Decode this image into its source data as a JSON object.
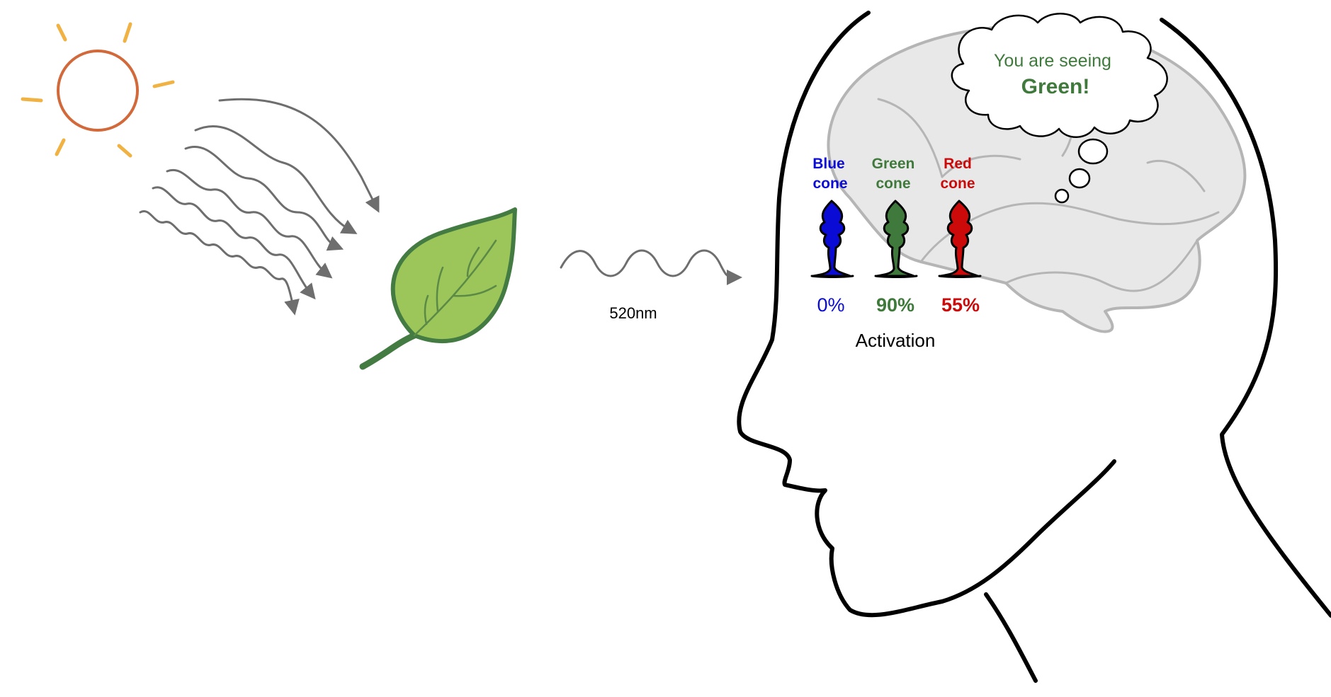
{
  "wavelength_label": "520nm",
  "thought": {
    "line1": "You are seeing",
    "line2": "Green!"
  },
  "cones": [
    {
      "name_line1": "Blue",
      "name_line2": "cone",
      "activation": "0%",
      "color": "#0b0bd6"
    },
    {
      "name_line1": "Green",
      "name_line2": "cone",
      "activation": "90%",
      "color": "#3f7a3c"
    },
    {
      "name_line1": "Red",
      "name_line2": "cone",
      "activation": "55%",
      "color": "#cc0a0a"
    }
  ],
  "activation_label": "Activation",
  "colors": {
    "sun": "#d2693a",
    "sun_rays": "#efb243",
    "light_waves": "#6e6e6e",
    "leaf_fill": "#9cc65a",
    "leaf_outline": "#437b43",
    "brain_fill": "#e8e8e8",
    "brain_outline": "#b5b5b5",
    "head_outline": "#000000",
    "thought_text": "#3f7a3c"
  },
  "icons": [
    "sun-icon",
    "leaf-icon",
    "brain-icon",
    "head-outline",
    "cone-cell-icon"
  ]
}
